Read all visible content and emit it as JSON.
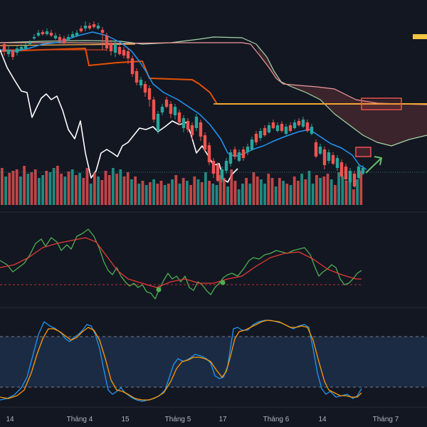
{
  "chart_data": {
    "type": "candlestick-with-indicators",
    "x_tick_labels": [
      "14",
      "Tháng 4",
      "15",
      "Tháng 5",
      "17",
      "Tháng 6",
      "14",
      "Tháng 7"
    ],
    "colors": {
      "background": "#131722",
      "candle_up": "#26a69a",
      "candle_down": "#ef5350",
      "volume_up": "#26a69a",
      "volume_down": "#ef5350",
      "price_line_white": "#ffffff",
      "tenkan_blue": "#2196f3",
      "kijun_orange": "#e65100",
      "senkou_a": "#a5d6a7",
      "senkou_b": "#ef9a9a",
      "cloud_fill": "#4a2a30",
      "yellow_level": "#f5c542",
      "highlight_box": "#ef5350",
      "arrow": "#66bb6a",
      "rsi_green": "#4caf50",
      "rsi_red": "#e53935",
      "stoch_blue": "#2196f3",
      "stoch_orange": "#ff9800",
      "stoch_band": "#1e2f4a"
    },
    "panels": [
      "price",
      "rsi",
      "stochastic"
    ],
    "gridlines": false,
    "legend": "none"
  }
}
